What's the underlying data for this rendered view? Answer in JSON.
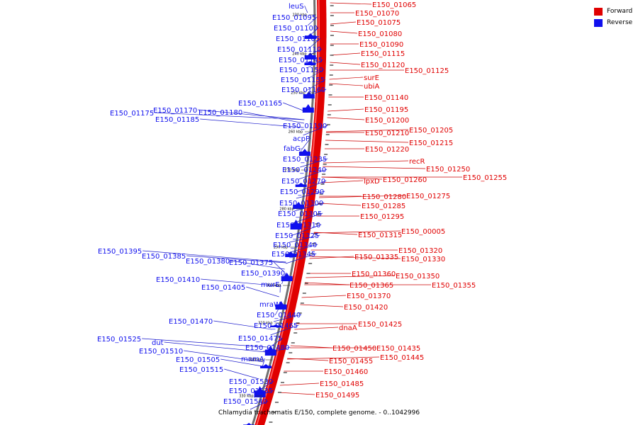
{
  "caption": "Chlamydia trachomatis E/150, complete genome. - 0..1042996",
  "legend": [
    {
      "label": "Forward",
      "color": "#e00000"
    },
    {
      "label": "Reverse",
      "color": "#1010ee"
    }
  ],
  "colors": {
    "forward": "#e00000",
    "reverse": "#1010ee",
    "forward_line": "#cc0000",
    "reverse_line": "#1a1acc"
  },
  "tick_labels": [
    "230 kbp",
    "240 kbp",
    "250 kbp",
    "260 kbp",
    "270 kbp",
    "280 kbp",
    "290 kbp",
    "300 kbp",
    "310 kbp",
    "320 kbp",
    "330 kbp"
  ],
  "forward_labels": [
    "E150_01065",
    "E150_01070",
    "E150_01075",
    "E150_01080",
    "E150_01090",
    "E150_01115",
    "E150_01120",
    "E150_01125",
    "surE",
    "ubiA",
    "E150_01140",
    "E150_01195",
    "E150_01200",
    "E150_01210",
    "E150_01205",
    "E150_01215",
    "E150_01220",
    "recR",
    "E150_01250",
    "E150_01255",
    "lpxD",
    "E150_01260",
    "E150_01280",
    "E150_01275",
    "E150_01285",
    "E150_01295",
    "E150_00005",
    "E150_01315",
    "E150_01320",
    "E150_01335",
    "E150_01330",
    "E150_01360",
    "E150_01350",
    "E150_01365",
    "E150_01355",
    "E150_01370",
    "E150_01420",
    "E150_01425",
    "dnaA",
    "E150_01450",
    "E150_01435",
    "E150_01445",
    "E150_01455",
    "E150_01460",
    "E150_01485",
    "E150_01495"
  ],
  "reverse_labels": [
    "leuS",
    "E150_01095",
    "E150_01100",
    "E150_01105",
    "E150_01110",
    "E150_01145",
    "E150_01150",
    "E150_01155",
    "E150_01160",
    "E150_01165",
    "E150_01170",
    "E150_01180",
    "E150_01175",
    "E150_01185",
    "E150_01190",
    "acpP",
    "fabG",
    "E150_01235",
    "E150_01240",
    "E150_01270",
    "E150_01290",
    "E150_01300",
    "E150_01305",
    "E150_01310",
    "E150_01325",
    "E150_01340",
    "E150_01345",
    "E150_01395",
    "E150_01385",
    "E150_01380",
    "E150_01375",
    "E150_01390",
    "E150_01410",
    "murE",
    "E150_01405",
    "mraW",
    "E150_01440",
    "E150_01470",
    "E150_01465",
    "E150_01475",
    "E150_01480",
    "E150_01525",
    "dut",
    "E150_01510",
    "E150_01505",
    "mnmA",
    "E150_01515",
    "E150_01530",
    "E150_01535",
    "E150_01540"
  ]
}
